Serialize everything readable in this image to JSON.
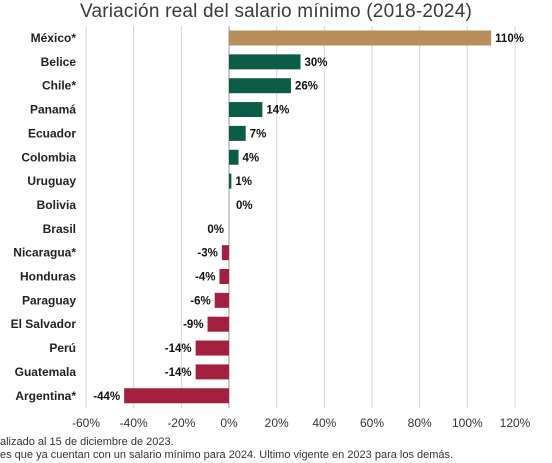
{
  "chart_data": {
    "type": "bar",
    "orientation": "horizontal",
    "title": "Variación real del salario mínimo (2018-2024)",
    "categories": [
      "México*",
      "Belice",
      "Chile*",
      "Panamá",
      "Ecuador",
      "Colombia",
      "Uruguay",
      "Bolivia",
      "Brasil",
      "Nicaragua*",
      "Honduras",
      "Paraguay",
      "El Salvador",
      "Perú",
      "Guatemala",
      "Argentina*"
    ],
    "values": [
      110,
      30,
      26,
      14,
      7,
      4,
      1,
      0,
      0,
      -3,
      -4,
      -6,
      -9,
      -14,
      -14,
      -44
    ],
    "value_labels": [
      "110%",
      "30%",
      "26%",
      "14%",
      "7%",
      "4%",
      "1%",
      "0%",
      "0%",
      "-3%",
      "-4%",
      "-6%",
      "-9%",
      "-14%",
      "-14%",
      "-44%"
    ],
    "xlim": [
      -60,
      120
    ],
    "xticks": [
      -60,
      -40,
      -20,
      0,
      20,
      40,
      60,
      80,
      100,
      120
    ],
    "xtick_labels": [
      "-60%",
      "-40%",
      "-20%",
      "0%",
      "20%",
      "40%",
      "60%",
      "80%",
      "100%",
      "120%"
    ],
    "grid": true,
    "legend": "none",
    "colors": {
      "highlight": "#b58e5a",
      "positive": "#0d5c48",
      "negative": "#a3213f"
    }
  },
  "footnotes": [
    "alizado al 15 de diciembre de 2023.",
    "es que ya cuentan con un salario mínimo para 2024. Ultimo vigente en 2023 para los demás."
  ]
}
